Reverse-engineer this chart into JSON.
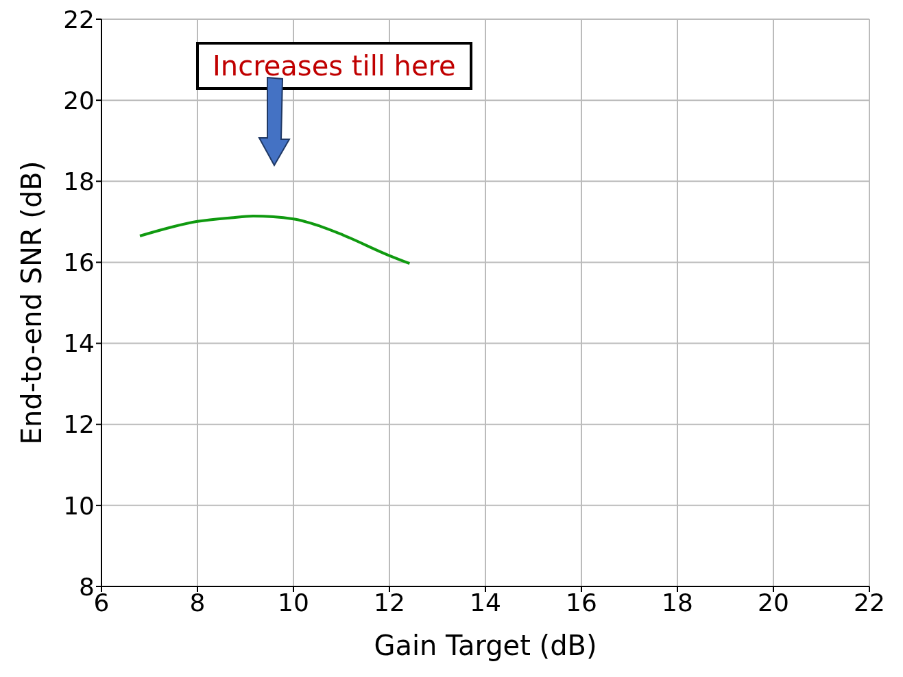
{
  "chart_data": {
    "type": "line",
    "xlabel": "Gain Target (dB)",
    "ylabel": "End-to-end SNR (dB)",
    "annotations": [
      "Increases till here"
    ],
    "series": [
      {
        "color": "#109a10",
        "x": [
          6.8,
          8.0,
          8.7,
          9.16,
          10.0,
          10.56,
          11.04,
          11.97,
          12.42
        ],
        "values": [
          16.65,
          17.01,
          17.1,
          17.14,
          17.07,
          16.89,
          16.67,
          16.18,
          15.97
        ]
      }
    ],
    "xlim": [
      6,
      22
    ],
    "xticks": [
      6,
      8,
      10,
      12,
      14,
      16,
      18,
      20,
      22
    ],
    "ylim": [
      8,
      22
    ],
    "yticks": [
      8,
      10,
      12,
      14,
      16,
      18,
      20,
      22
    ],
    "grid": true,
    "marker": "none",
    "line_style": "solid"
  }
}
